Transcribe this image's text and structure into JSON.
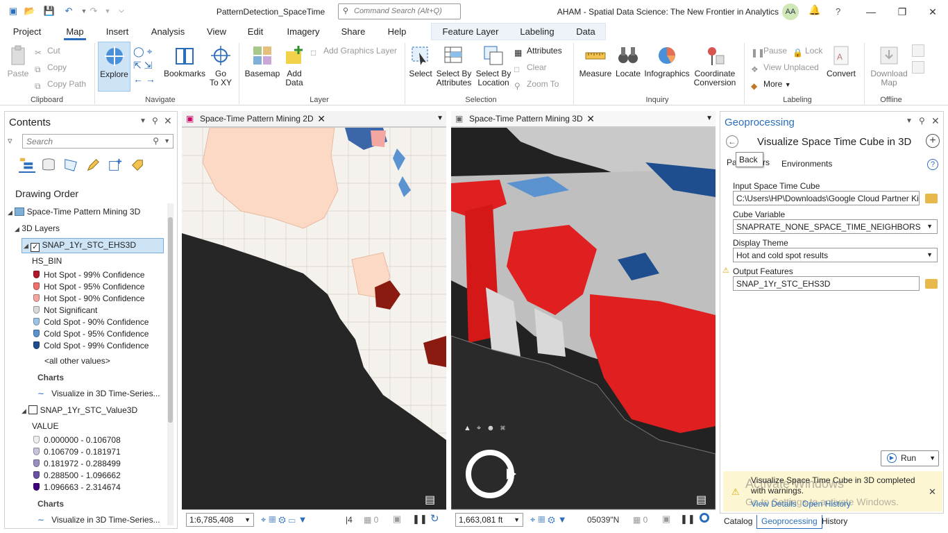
{
  "titlebar": {
    "document": "PatternDetection_SpaceTime",
    "command_search_placeholder": "Command Search (Alt+Q)",
    "app_title": "AHAM - Spatial Data Science:  The New Frontier in Analytics",
    "user_initials": "AA",
    "help": "?"
  },
  "ribbon_tabs": [
    "Project",
    "Map",
    "Insert",
    "Analysis",
    "View",
    "Edit",
    "Imagery",
    "Share",
    "Help"
  ],
  "context_tabs": [
    "Feature Layer",
    "Labeling",
    "Data"
  ],
  "active_tab": "Map",
  "ribbon": {
    "clipboard": {
      "label": "Clipboard",
      "paste": "Paste",
      "cut": "Cut",
      "copy": "Copy",
      "copy_path": "Copy Path"
    },
    "navigate": {
      "label": "Navigate",
      "explore": "Explore",
      "bookmarks": "Bookmarks",
      "goto_1": "Go",
      "goto_2": "To XY"
    },
    "layer": {
      "label": "Layer",
      "basemap": "Basemap",
      "add_data_1": "Add",
      "add_data_2": "Data",
      "add_graphics": "Add Graphics Layer"
    },
    "selection": {
      "label": "Selection",
      "select": "Select",
      "select_by_attr_1": "Select By",
      "select_by_attr_2": "Attributes",
      "select_by_loc_1": "Select By",
      "select_by_loc_2": "Location",
      "attributes": "Attributes",
      "clear": "Clear",
      "zoom_to": "Zoom To"
    },
    "inquiry": {
      "label": "Inquiry",
      "measure": "Measure",
      "locate": "Locate",
      "infographics": "Infographics",
      "coord_1": "Coordinate",
      "coord_2": "Conversion"
    },
    "labeling": {
      "label": "Labeling",
      "pause": "Pause",
      "lock": "Lock",
      "view_unplaced": "View Unplaced",
      "more": "More",
      "convert": "Convert"
    },
    "offline": {
      "label": "Offline",
      "download_1": "Download",
      "download_2": "Map"
    }
  },
  "contents": {
    "title": "Contents",
    "search_placeholder": "Search",
    "drawing_order": "Drawing Order",
    "map": "Space-Time Pattern Mining 3D",
    "group": "3D Layers",
    "layer1": {
      "name": "SNAP_1Yr_STC_EHS3D",
      "checked": true,
      "field": "HS_BIN",
      "classes": [
        {
          "label": "Hot Spot - 99% Confidence",
          "color": "#b2182b"
        },
        {
          "label": "Hot Spot - 95% Confidence",
          "color": "#ef6f6c"
        },
        {
          "label": "Hot Spot - 90% Confidence",
          "color": "#f4a6a0"
        },
        {
          "label": "Not Significant",
          "color": "#d9d9d9"
        },
        {
          "label": "Cold Spot - 90% Confidence",
          "color": "#9ec3e6"
        },
        {
          "label": "Cold Spot - 95% Confidence",
          "color": "#5b93d1"
        },
        {
          "label": "Cold Spot - 99% Confidence",
          "color": "#1f4e8f"
        }
      ],
      "other": "<all other values>",
      "charts": "Charts",
      "chart_item": "Visualize in 3D Time-Series..."
    },
    "layer2": {
      "name": "SNAP_1Yr_STC_Value3D",
      "checked": false,
      "field": "VALUE",
      "classes": [
        {
          "label": "0.000000 - 0.106708",
          "color": "#eeeeee"
        },
        {
          "label": "0.106709 - 0.181971",
          "color": "#c9c3db"
        },
        {
          "label": "0.181972 - 0.288499",
          "color": "#9a8fc0"
        },
        {
          "label": "0.288500 - 1.096662",
          "color": "#6a51a3"
        },
        {
          "label": "1.096663 - 2.314674",
          "color": "#3f007d"
        }
      ],
      "charts": "Charts",
      "chart_item": "Visualize in 3D Time-Series..."
    }
  },
  "view2d": {
    "tab": "Space-Time Pattern Mining 2D",
    "scale": "1:6,785,408",
    "count": "4",
    "sel": "0"
  },
  "view3d": {
    "tab": "Space-Time Pattern Mining 3D",
    "scale": "1,663,081 ft",
    "coord": "05039\"N",
    "sel": "0"
  },
  "geoprocessing": {
    "title": "Geoprocessing",
    "tool": "Visualize Space Time Cube in 3D",
    "tooltip": "Back",
    "tabs": [
      "Parameters",
      "Environments"
    ],
    "params": [
      {
        "label": "Input Space Time Cube",
        "value": "C:\\Users\\HP\\Downloads\\Google Cloud Partner Ki"
      },
      {
        "label": "Cube Variable",
        "value": "SNAPRATE_NONE_SPACE_TIME_NEIGHBORS"
      },
      {
        "label": "Display Theme",
        "value": "Hot and cold spot results"
      },
      {
        "label": "Output Features",
        "value": "SNAP_1Yr_STC_EHS3D"
      }
    ],
    "run": "Run",
    "message": "Visualize Space Time Cube in 3D completed with warnings.",
    "view_details": "View Details",
    "open_history": "Open History",
    "watermark_1": "Activate Windows",
    "watermark_2": "Go to Settings to activate Windows."
  },
  "bottom_tabs": [
    "Catalog",
    "Geoprocessing",
    "History"
  ]
}
